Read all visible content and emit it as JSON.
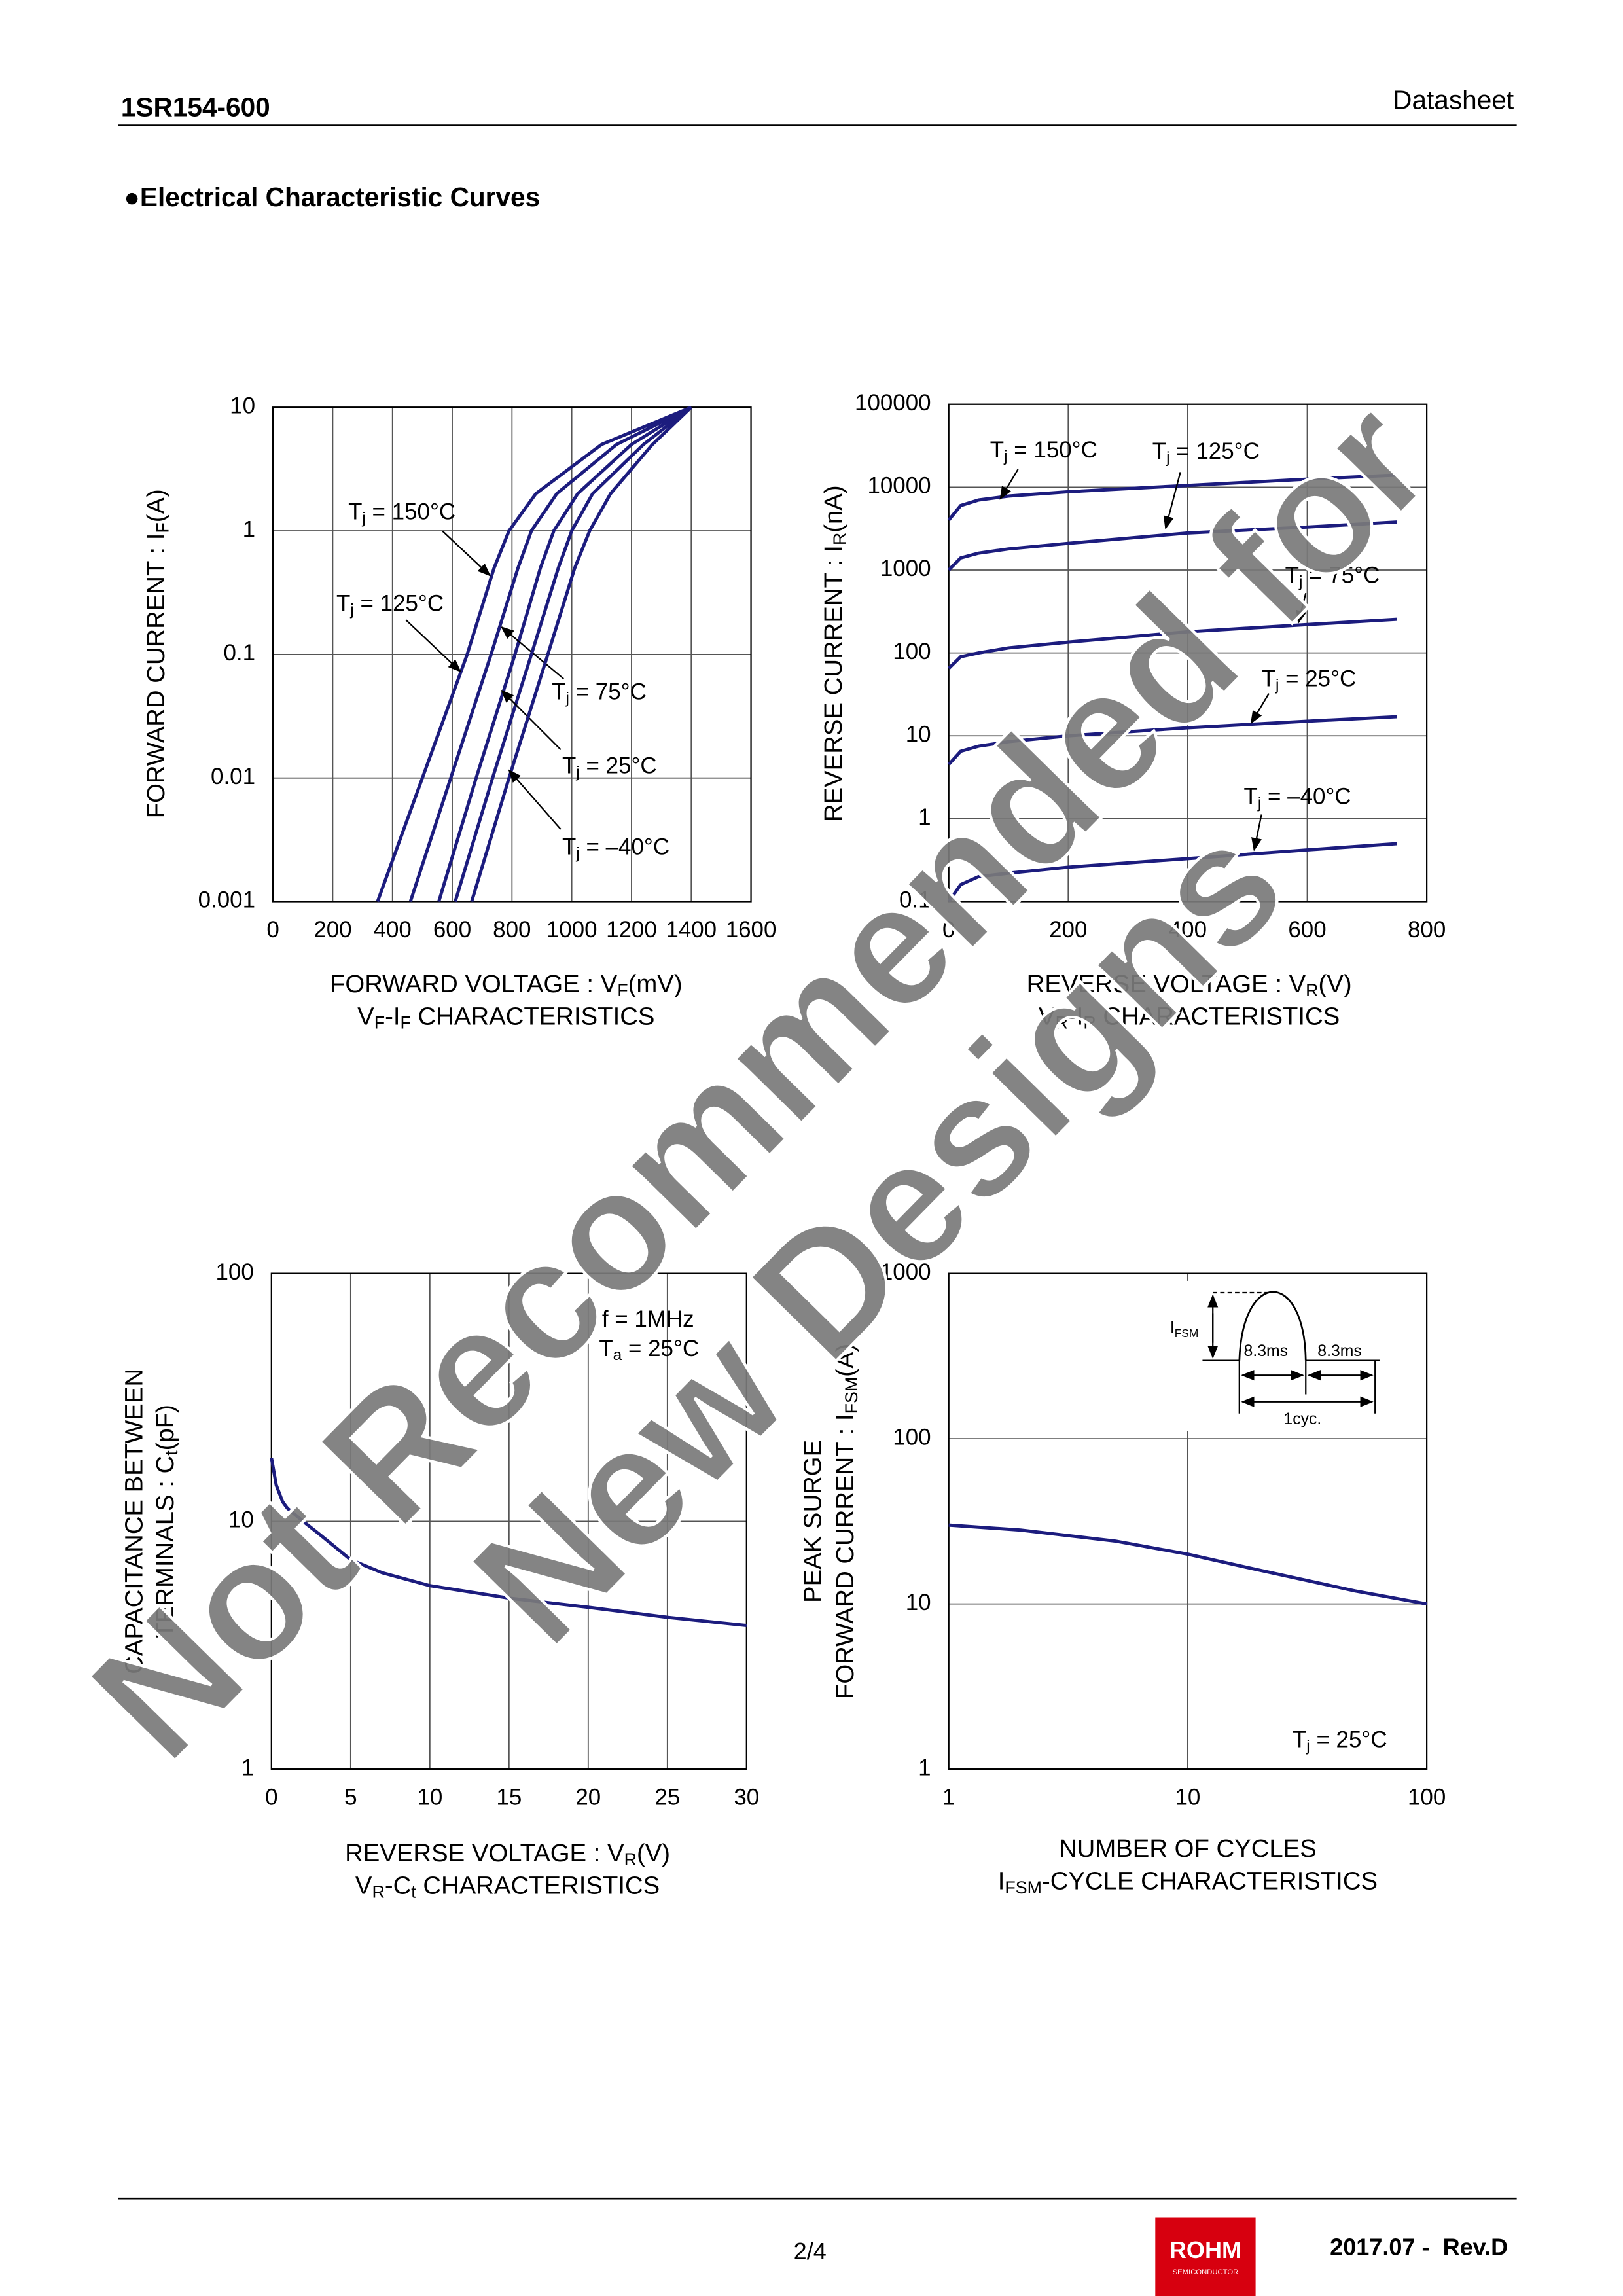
{
  "header": {
    "part": "1SR154-600",
    "doc_type": "Datasheet"
  },
  "section_title": "●Electrical Characteristic Curves",
  "chart_data": [
    {
      "type": "line",
      "x_label": [
        "FORWARD VOLTAGE : V",
        "F",
        "(mV)"
      ],
      "caption": [
        "V",
        "F",
        "-I",
        "F",
        " CHARACTERISTICS"
      ],
      "y_label": [
        [
          "FORWARD CURRENT : I",
          "F",
          "(A)"
        ]
      ],
      "xscale": "linear",
      "yscale": "log",
      "xlim": [
        0,
        1600
      ],
      "ylim": [
        0.001,
        10
      ],
      "xticks": [
        0,
        200,
        400,
        600,
        800,
        1000,
        1200,
        1400,
        1600
      ],
      "yticks": [
        0.001,
        0.01,
        0.1,
        1,
        10
      ],
      "grid": true,
      "series": [
        {
          "name": [
            "T",
            "j",
            " = 150°C"
          ],
          "color": "#1c1c7e",
          "x": [
            350,
            500,
            650,
            740,
            790,
            880,
            1100,
            1400
          ],
          "values": [
            0.001,
            0.01,
            0.1,
            0.5,
            1,
            2,
            5,
            10
          ]
        },
        {
          "name": [
            "T",
            "j",
            " = 125°C"
          ],
          "color": "#1c1c7e",
          "x": [
            460,
            595,
            730,
            820,
            865,
            950,
            1150,
            1400
          ],
          "values": [
            0.001,
            0.01,
            0.1,
            0.5,
            1,
            2,
            5,
            10
          ]
        },
        {
          "name": [
            "T",
            "j",
            " = 75°C"
          ],
          "color": "#1c1c7e",
          "x": [
            555,
            680,
            810,
            895,
            940,
            1020,
            1200,
            1400
          ],
          "values": [
            0.001,
            0.01,
            0.1,
            0.5,
            1,
            2,
            5,
            10
          ]
        },
        {
          "name": [
            "T",
            "j",
            " = 25°C"
          ],
          "color": "#1c1c7e",
          "x": [
            610,
            735,
            865,
            955,
            1000,
            1070,
            1240,
            1400
          ],
          "values": [
            0.001,
            0.01,
            0.1,
            0.5,
            1,
            2,
            5,
            10
          ]
        },
        {
          "name": [
            "T",
            "j",
            " = –40°C"
          ],
          "color": "#1c1c7e",
          "x": [
            665,
            790,
            920,
            1010,
            1060,
            1130,
            1270,
            1400
          ],
          "values": [
            0.001,
            0.01,
            0.1,
            0.5,
            1,
            2,
            5,
            10
          ]
        }
      ],
      "annotations": []
    },
    {
      "type": "line",
      "x_label": [
        "REVERSE VOLTAGE : V",
        "R",
        "(V)"
      ],
      "caption": [
        "V",
        "R",
        "-I",
        "R",
        " CHARACTERISTICS"
      ],
      "y_label": [
        [
          "REVERSE CURRENT : I",
          "R",
          "(nA)"
        ]
      ],
      "xscale": "linear",
      "yscale": "log",
      "xlim": [
        0,
        800
      ],
      "ylim": [
        0.1,
        100000
      ],
      "xticks": [
        0,
        200,
        400,
        600,
        800
      ],
      "yticks": [
        0.1,
        1,
        10,
        100,
        1000,
        10000,
        100000
      ],
      "grid": true,
      "series": [
        {
          "name": [
            "T",
            "j",
            " = 150°C"
          ],
          "color": "#1c1c7e",
          "x": [
            0,
            20,
            50,
            100,
            200,
            400,
            600,
            750
          ],
          "values": [
            4000,
            6000,
            7000,
            7800,
            8800,
            10500,
            12500,
            14000
          ]
        },
        {
          "name": [
            "T",
            "j",
            " = 125°C"
          ],
          "color": "#1c1c7e",
          "x": [
            0,
            20,
            50,
            100,
            200,
            400,
            600,
            750
          ],
          "values": [
            1000,
            1400,
            1600,
            1800,
            2100,
            2800,
            3300,
            3800
          ]
        },
        {
          "name": [
            "T",
            "j",
            " = 75°C"
          ],
          "color": "#1c1c7e",
          "x": [
            0,
            20,
            50,
            100,
            200,
            400,
            600,
            750
          ],
          "values": [
            65,
            90,
            100,
            115,
            135,
            180,
            220,
            255
          ]
        },
        {
          "name": [
            "T",
            "j",
            " = 25°C"
          ],
          "color": "#1c1c7e",
          "x": [
            0,
            20,
            50,
            100,
            200,
            400,
            600,
            750
          ],
          "values": [
            4.5,
            6.5,
            7.5,
            8.5,
            10,
            12.5,
            15,
            17
          ]
        },
        {
          "name": [
            "T",
            "j",
            " = –40°C"
          ],
          "color": "#1c1c7e",
          "x": [
            0,
            20,
            50,
            100,
            200,
            400,
            600,
            750
          ],
          "values": [
            0.1,
            0.16,
            0.2,
            0.22,
            0.26,
            0.33,
            0.42,
            0.5
          ]
        }
      ],
      "annotations": []
    },
    {
      "type": "line",
      "x_label": [
        "REVERSE VOLTAGE : V",
        "R",
        "(V)"
      ],
      "caption": [
        "V",
        "R",
        "-C",
        "t",
        " CHARACTERISTICS"
      ],
      "y_label": [
        [
          "CAPACITANCE BETWEEN"
        ],
        [
          "TERMINALS : C",
          "t",
          "(pF)"
        ]
      ],
      "xscale": "linear",
      "yscale": "log",
      "xlim": [
        0,
        30
      ],
      "ylim": [
        1,
        100
      ],
      "xticks": [
        0,
        5,
        10,
        15,
        20,
        25,
        30
      ],
      "yticks": [
        1,
        10,
        100
      ],
      "grid": true,
      "series": [
        {
          "color": "#1c1c7e",
          "x": [
            0,
            0.3,
            0.7,
            1,
            2,
            3,
            5,
            7,
            10,
            15,
            20,
            25,
            30
          ],
          "values": [
            18,
            14,
            12,
            11.3,
            10,
            8.9,
            7,
            6.2,
            5.5,
            4.9,
            4.5,
            4.1,
            3.8
          ]
        }
      ],
      "annotations": [
        [
          "f = 1MHz"
        ],
        [
          "T",
          "a",
          " = 25°C"
        ]
      ]
    },
    {
      "type": "line",
      "x_label": [
        "NUMBER OF CYCLES"
      ],
      "caption": [
        "I",
        "FSM",
        "-CYCLE CHARACTERISTICS"
      ],
      "y_label": [
        [
          "PEAK SURGE"
        ],
        [
          "FORWARD CURRENT : I",
          "FSM",
          "(A)"
        ]
      ],
      "xscale": "log",
      "yscale": "log",
      "xlim": [
        1,
        100
      ],
      "ylim": [
        1,
        1000
      ],
      "xticks": [
        1,
        10,
        100
      ],
      "yticks": [
        1,
        10,
        100,
        1000
      ],
      "grid": true,
      "series": [
        {
          "color": "#1c1c7e",
          "x": [
            1,
            2,
            5,
            10,
            20,
            50,
            100
          ],
          "values": [
            30,
            28,
            24,
            20,
            16,
            12,
            10
          ]
        }
      ],
      "annotations": [
        [
          "I",
          "FSM"
        ],
        [
          "8.3ms"
        ],
        [
          "8.3ms"
        ],
        [
          "1cyc."
        ],
        [
          "T",
          "j",
          " = 25°C"
        ]
      ]
    }
  ],
  "watermark": [
    "Not Recommended for",
    "New Designs"
  ],
  "footer": {
    "page": "2/4",
    "logo": "ROHM",
    "logo_sub": "SEMICONDUCTOR",
    "revision": "2017.07 -  Rev.D"
  }
}
